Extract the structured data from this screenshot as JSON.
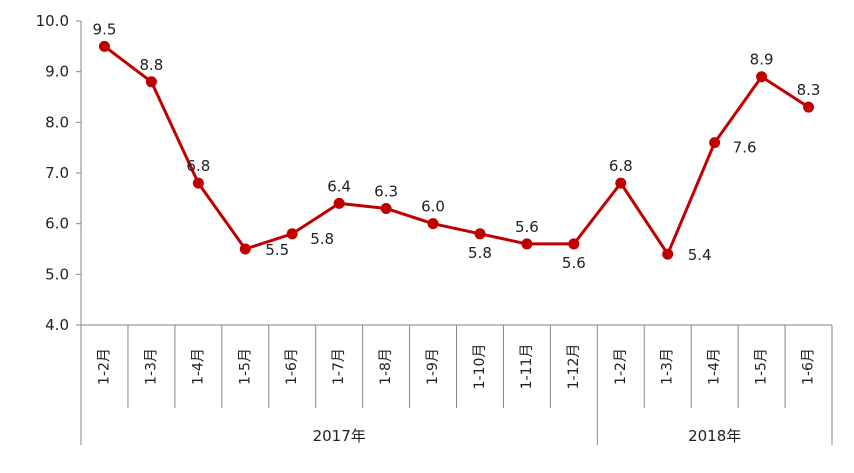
{
  "chart_data": {
    "type": "line",
    "title": "",
    "xlabel": "",
    "ylabel": "",
    "ylim": [
      4.0,
      10.0
    ],
    "yticks": [
      "4.0",
      "5.0",
      "6.0",
      "7.0",
      "8.0",
      "9.0",
      "10.0"
    ],
    "grid": false,
    "legend": "none",
    "line_color": "#C00000",
    "categories": [
      "1-2月",
      "1-3月",
      "1-4月",
      "1-5月",
      "1-6月",
      "1-7月",
      "1-8月",
      "1-9月",
      "1-10月",
      "1-11月",
      "1-12月",
      "1-2月",
      "1-3月",
      "1-4月",
      "1-5月",
      "1-6月"
    ],
    "groups": [
      {
        "label": "2017年",
        "count": 11
      },
      {
        "label": "2018年",
        "count": 5
      }
    ],
    "series": [
      {
        "values": [
          9.5,
          8.8,
          6.8,
          5.5,
          5.8,
          6.4,
          6.3,
          6.0,
          5.8,
          5.6,
          5.6,
          6.8,
          5.4,
          7.6,
          8.9,
          8.3
        ],
        "labels": [
          "9.5",
          "8.8",
          "6.8",
          "5.5",
          "5.8",
          "6.4",
          "6.3",
          "6.0",
          "5.8",
          "5.6",
          "5.6",
          "6.8",
          "5.4",
          "7.6",
          "8.9",
          "8.3"
        ]
      }
    ]
  }
}
